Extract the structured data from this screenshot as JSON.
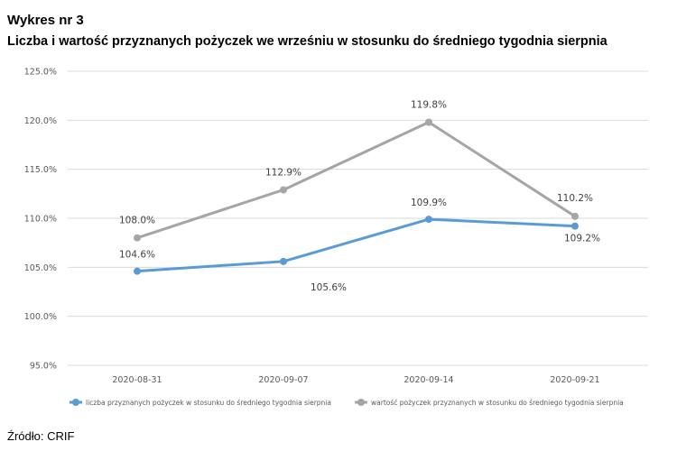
{
  "header": {
    "label": "Wykres nr 3",
    "title": "Liczba i wartość przyznanych pożyczek we wrześniu w stosunku do średniego tygodnia sierpnia"
  },
  "source": "Źródło: CRIF",
  "chart_data": {
    "type": "line",
    "categories": [
      "2020-08-31",
      "2020-09-07",
      "2020-09-14",
      "2020-09-21"
    ],
    "series": [
      {
        "name": "liczba przyznanych pożyczek w stosunku do średniego tygodnia sierpnia",
        "values": [
          104.6,
          105.6,
          109.9,
          109.2
        ],
        "labels": [
          "104.6%",
          "105.6%",
          "109.9%",
          "109.2%"
        ],
        "color": "#5B9BD5"
      },
      {
        "name": "wartość pożyczek przyznanych w stosunku do średniego tygodnia sierpnia",
        "values": [
          108.0,
          112.9,
          119.8,
          110.2
        ],
        "labels": [
          "108.0%",
          "112.9%",
          "119.8%",
          "110.2%"
        ],
        "color": "#A5A5A5"
      }
    ],
    "ylim": [
      95,
      125
    ],
    "yticks": [
      "95.0%",
      "100.0%",
      "105.0%",
      "110.0%",
      "115.0%",
      "120.0%",
      "125.0%"
    ],
    "grid": true,
    "legend_position": "bottom"
  }
}
